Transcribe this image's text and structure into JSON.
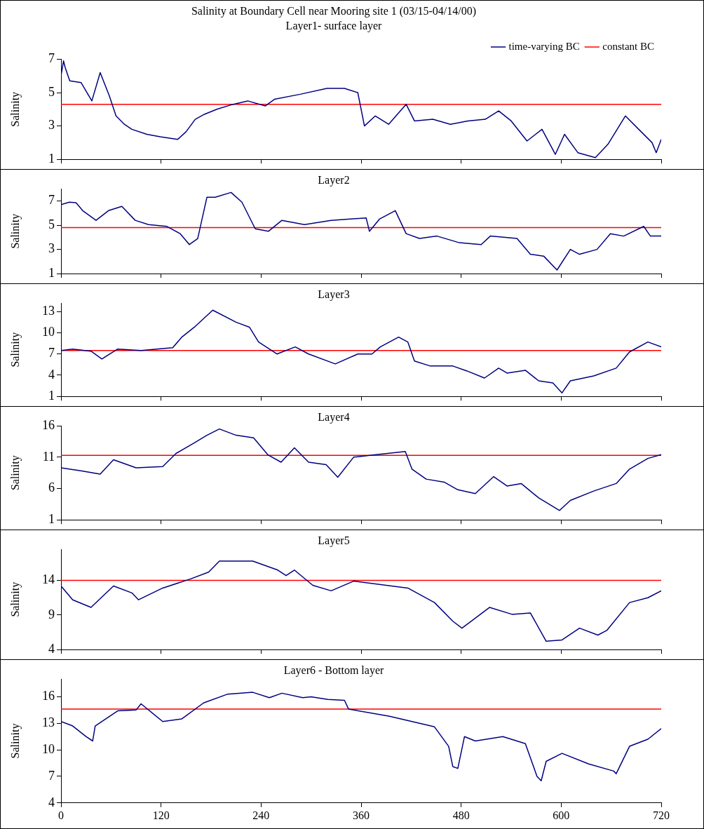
{
  "chart_data": [
    {
      "type": "line",
      "title": "Salinity at Boundary Cell near Mooring site 1 (03/15-04/14/00)",
      "subtitle": "Layer1- surface layer",
      "ylabel": "Salinity",
      "xlim": [
        0,
        720
      ],
      "xticks": [
        0,
        120,
        240,
        360,
        480,
        600,
        720
      ],
      "ylim": [
        1,
        7
      ],
      "yticks": [
        1,
        3,
        5,
        7
      ],
      "tick_labels": "y",
      "grid": false,
      "legend": "top right",
      "marker": "none",
      "line_style": "solid",
      "series": [
        {
          "name": "time-varying BC",
          "color": "#000080",
          "x": [
            0,
            3,
            5,
            10.5,
            24,
            37,
            47,
            58,
            66,
            76,
            85,
            103,
            119,
            140,
            150,
            161,
            172,
            187,
            203,
            224,
            245,
            256,
            287,
            319,
            340,
            356,
            364,
            377,
            393,
            414,
            424,
            446,
            467,
            488,
            509,
            525,
            540,
            559,
            577,
            593,
            604,
            620,
            641,
            656,
            677,
            693,
            709,
            714,
            720
          ],
          "values": [
            6.0,
            6.9,
            6.5,
            5.7,
            5.6,
            4.5,
            6.2,
            4.8,
            3.6,
            3.1,
            2.8,
            2.5,
            2.35,
            2.2,
            2.65,
            3.4,
            3.7,
            4.0,
            4.25,
            4.5,
            4.2,
            4.6,
            4.9,
            5.25,
            5.25,
            5.0,
            3.0,
            3.6,
            3.1,
            4.3,
            3.3,
            3.4,
            3.1,
            3.3,
            3.4,
            3.9,
            3.3,
            2.1,
            2.8,
            1.3,
            2.5,
            1.4,
            1.1,
            1.9,
            3.6,
            2.8,
            2.0,
            1.4,
            2.2
          ]
        },
        {
          "name": "constant BC",
          "color": "#ff0000",
          "x": [
            0,
            720
          ],
          "values": [
            4.3,
            4.3
          ]
        }
      ]
    },
    {
      "type": "line",
      "title": "Layer2",
      "ylabel": "Salinity",
      "xlim": [
        0,
        720
      ],
      "xticks": [
        0,
        120,
        240,
        360,
        480,
        600,
        720
      ],
      "ylim": [
        1,
        8
      ],
      "yticks": [
        1,
        3,
        5,
        7
      ],
      "tick_labels": "y",
      "grid": false,
      "marker": "none",
      "line_style": "solid",
      "series": [
        {
          "color": "#000080",
          "x": [
            0,
            10,
            18,
            26,
            42,
            57,
            73,
            89,
            105,
            127,
            143,
            154,
            164,
            175,
            185,
            204,
            217,
            233,
            249,
            265,
            292,
            324,
            366,
            370,
            382,
            401,
            414,
            430,
            451,
            478,
            504,
            515,
            547,
            563,
            579,
            595,
            611,
            622,
            643,
            659,
            675,
            699,
            707,
            720
          ],
          "values": [
            6.7,
            6.9,
            6.85,
            6.2,
            5.4,
            6.2,
            6.55,
            5.4,
            5.05,
            4.9,
            4.3,
            3.4,
            3.9,
            7.3,
            7.3,
            7.7,
            6.9,
            4.7,
            4.5,
            5.4,
            5.05,
            5.4,
            5.6,
            4.5,
            5.5,
            6.2,
            4.3,
            3.9,
            4.1,
            3.55,
            3.4,
            4.1,
            3.9,
            2.6,
            2.45,
            1.3,
            3.0,
            2.6,
            3.0,
            4.3,
            4.1,
            4.9,
            4.1,
            4.1
          ]
        },
        {
          "color": "#ff0000",
          "x": [
            0,
            720
          ],
          "values": [
            4.8,
            4.8
          ]
        }
      ]
    },
    {
      "type": "line",
      "title": "Layer3",
      "ylabel": "Salinity",
      "xlim": [
        0,
        720
      ],
      "xticks": [
        0,
        120,
        240,
        360,
        480,
        600,
        720
      ],
      "ylim": [
        1,
        14.2
      ],
      "yticks": [
        1,
        4,
        7,
        10,
        13
      ],
      "tick_labels": "y",
      "grid": false,
      "marker": "none",
      "line_style": "solid",
      "series": [
        {
          "color": "#000080",
          "x": [
            0,
            14,
            36,
            49,
            68,
            96,
            134,
            145,
            160,
            182,
            210,
            226,
            237,
            259,
            281,
            297,
            329,
            356,
            373,
            383,
            405,
            416,
            424,
            443,
            470,
            487,
            508,
            525,
            535,
            557,
            573,
            590,
            601,
            611,
            639,
            666,
            682,
            704,
            720
          ],
          "values": [
            7.5,
            7.7,
            7.4,
            6.3,
            7.7,
            7.5,
            7.9,
            9.4,
            10.8,
            13.2,
            11.5,
            10.8,
            8.7,
            7.0,
            8.0,
            7.0,
            5.6,
            7.0,
            7.0,
            8.0,
            9.4,
            8.7,
            6.0,
            5.3,
            5.3,
            4.6,
            3.6,
            5.0,
            4.3,
            4.7,
            3.2,
            2.9,
            1.5,
            3.2,
            3.9,
            5.0,
            7.3,
            8.7,
            8.0
          ]
        },
        {
          "color": "#ff0000",
          "x": [
            0,
            720
          ],
          "values": [
            7.5,
            7.5
          ]
        }
      ]
    },
    {
      "type": "line",
      "title": "Layer4",
      "ylabel": "Salinity",
      "xlim": [
        0,
        720
      ],
      "xticks": [
        0,
        120,
        240,
        360,
        480,
        600,
        720
      ],
      "ylim": [
        1,
        16
      ],
      "yticks": [
        1,
        6,
        11,
        16
      ],
      "tick_labels": "y",
      "grid": false,
      "marker": "none",
      "line_style": "solid",
      "series": [
        {
          "color": "#000080",
          "x": [
            0,
            25,
            47,
            63,
            90,
            122,
            138,
            160,
            175,
            190,
            210,
            231,
            248,
            264,
            280,
            297,
            318,
            332,
            351,
            378,
            413,
            421,
            438,
            460,
            476,
            497,
            519,
            535,
            552,
            573,
            598,
            611,
            639,
            666,
            682,
            704,
            720
          ],
          "values": [
            9.3,
            8.8,
            8.3,
            10.6,
            9.3,
            9.5,
            11.6,
            13.3,
            14.5,
            15.5,
            14.5,
            14.1,
            11.4,
            10.2,
            12.5,
            10.2,
            9.8,
            7.8,
            11.0,
            11.4,
            11.9,
            9.1,
            7.5,
            7.0,
            5.8,
            5.2,
            7.9,
            6.4,
            6.8,
            4.5,
            2.5,
            4.1,
            5.6,
            6.8,
            9.1,
            10.8,
            11.4
          ]
        },
        {
          "color": "#ff0000",
          "x": [
            0,
            720
          ],
          "values": [
            11.3,
            11.3
          ]
        }
      ]
    },
    {
      "type": "line",
      "title": "Layer5",
      "ylabel": "Salinity",
      "xlim": [
        0,
        720
      ],
      "xticks": [
        0,
        120,
        240,
        360,
        480,
        600,
        720
      ],
      "ylim": [
        4,
        18.5
      ],
      "yticks": [
        4,
        9,
        14
      ],
      "tick_labels": "y",
      "grid": false,
      "marker": "none",
      "line_style": "solid",
      "series": [
        {
          "color": "#000080",
          "x": [
            0,
            14,
            36,
            63,
            85,
            93,
            122,
            155,
            177,
            190,
            230,
            260,
            270,
            280,
            286,
            302,
            324,
            351,
            416,
            448,
            470,
            481,
            514,
            541,
            563,
            582,
            601,
            622,
            644,
            655,
            682,
            704,
            720
          ],
          "values": [
            13.2,
            11.2,
            10.1,
            13.2,
            12.2,
            11.2,
            12.9,
            14.2,
            15.2,
            16.8,
            16.8,
            15.5,
            14.7,
            15.5,
            14.9,
            13.3,
            12.5,
            13.9,
            12.9,
            10.8,
            8.1,
            7.1,
            10.1,
            9.1,
            9.3,
            5.2,
            5.4,
            7.1,
            6.1,
            6.8,
            10.8,
            11.5,
            12.5
          ]
        },
        {
          "color": "#ff0000",
          "x": [
            0,
            720
          ],
          "values": [
            14,
            14
          ]
        }
      ]
    },
    {
      "type": "line",
      "title": "Layer6 - Bottom layer",
      "ylabel": "Salinity",
      "xlim": [
        0,
        720
      ],
      "xticks": [
        0,
        120,
        240,
        360,
        480,
        600,
        720
      ],
      "ylim": [
        4,
        18
      ],
      "yticks": [
        4,
        7,
        10,
        13,
        16
      ],
      "grid": false,
      "marker": "none",
      "line_style": "solid",
      "series": [
        {
          "color": "#000080",
          "x": [
            0,
            14,
            30,
            38,
            41,
            68,
            90,
            96,
            122,
            145,
            171,
            200,
            230,
            250,
            265,
            290,
            300,
            320,
            340,
            345,
            394,
            421,
            448,
            465,
            470,
            476,
            484,
            497,
            530,
            557,
            571,
            576,
            582,
            601,
            633,
            663,
            666,
            682,
            704,
            720
          ],
          "values": [
            13.2,
            12.7,
            11.5,
            11.0,
            12.7,
            14.4,
            14.5,
            15.2,
            13.2,
            13.5,
            15.3,
            16.3,
            16.5,
            15.9,
            16.4,
            15.9,
            16.0,
            15.7,
            15.6,
            14.6,
            13.8,
            13.2,
            12.6,
            10.4,
            8.1,
            7.9,
            11.5,
            11.0,
            11.5,
            10.7,
            7.0,
            6.5,
            8.7,
            9.6,
            8.4,
            7.6,
            7.3,
            10.4,
            11.2,
            12.4
          ]
        },
        {
          "color": "#ff0000",
          "x": [
            0,
            720
          ],
          "values": [
            14.6,
            14.6
          ]
        }
      ]
    }
  ]
}
